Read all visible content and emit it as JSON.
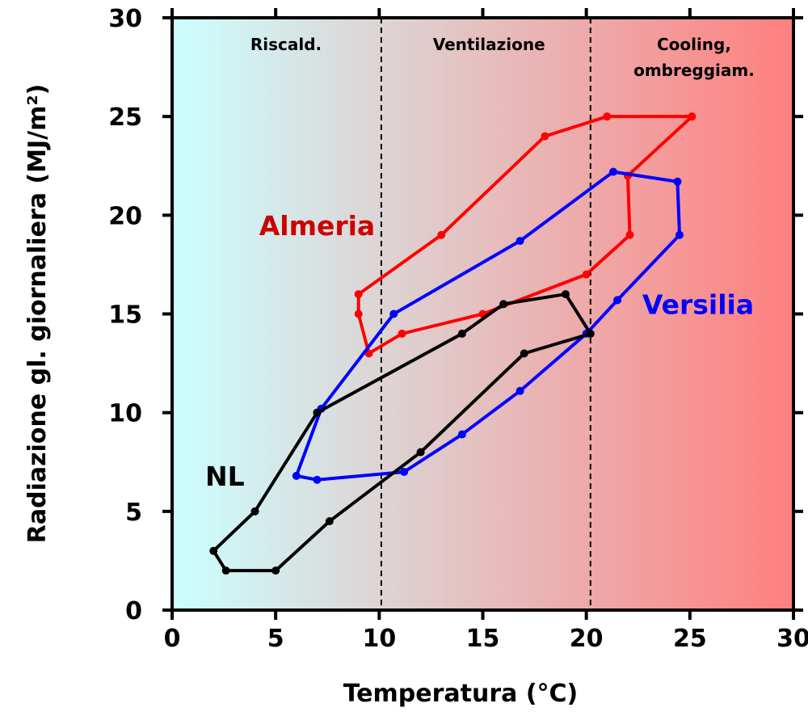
{
  "chart_data": {
    "type": "line",
    "xlabel": "Temperatura (°C)",
    "ylabel": "Radiazione gl. giornaliera (MJ/m²)",
    "xlim": [
      0,
      30
    ],
    "ylim": [
      0,
      30
    ],
    "xticks": [
      "0",
      "5",
      "10",
      "15",
      "20",
      "25",
      "30"
    ],
    "yticks": [
      "0",
      "5",
      "10",
      "15",
      "20",
      "25",
      "30"
    ],
    "background_gradient": [
      "#ccffff",
      "#ff7f7f"
    ],
    "grid": false,
    "regions": [
      {
        "label_lines": [
          "Riscald."
        ],
        "x_center": 5.5
      },
      {
        "label_lines": [
          "Ventilazione"
        ],
        "x_center": 15.3
      },
      {
        "label_lines": [
          "Cooling,",
          "ombreggiam."
        ],
        "x_center": 25.2
      }
    ],
    "boundaries_x": [
      10.1,
      20.2
    ],
    "series": [
      {
        "name": "Almeria",
        "color": "#ff0000",
        "label_color": "#cc0000",
        "label_at": [
          9.8,
          19.0
        ],
        "label_anchor": "end",
        "closed": true,
        "x": [
          9.5,
          11.1,
          15.0,
          20.0,
          22.1,
          22.0,
          25.1,
          21.0,
          18.0,
          13.0,
          9.0,
          9.0
        ],
        "y": [
          13.0,
          14.0,
          15.0,
          17.0,
          19.0,
          22.0,
          25.0,
          25.0,
          24.0,
          19.0,
          16.0,
          15.0
        ]
      },
      {
        "name": "Versilia",
        "color": "#0000ff",
        "label_color": "#0000ff",
        "label_at": [
          22.7,
          15.0
        ],
        "label_anchor": "start",
        "closed": true,
        "x": [
          6.0,
          7.0,
          11.2,
          14.0,
          16.8,
          20.0,
          21.5,
          24.5,
          24.4,
          21.3,
          16.8,
          10.7,
          7.2
        ],
        "y": [
          6.8,
          6.6,
          7.0,
          8.9,
          11.1,
          14.0,
          15.7,
          19.0,
          21.7,
          22.2,
          18.7,
          15.0,
          10.2
        ]
      },
      {
        "name": "NL",
        "color": "#000000",
        "label_color": "#000000",
        "label_at": [
          1.6,
          6.3
        ],
        "label_anchor": "start",
        "closed": true,
        "x": [
          2.6,
          5.0,
          7.6,
          12.0,
          17.0,
          20.2,
          19.0,
          16.0,
          14.0,
          7.0,
          4.0,
          2.0
        ],
        "y": [
          2.0,
          2.0,
          4.5,
          8.0,
          13.0,
          14.0,
          16.0,
          15.5,
          14.0,
          10.0,
          5.0,
          3.0
        ]
      }
    ]
  }
}
